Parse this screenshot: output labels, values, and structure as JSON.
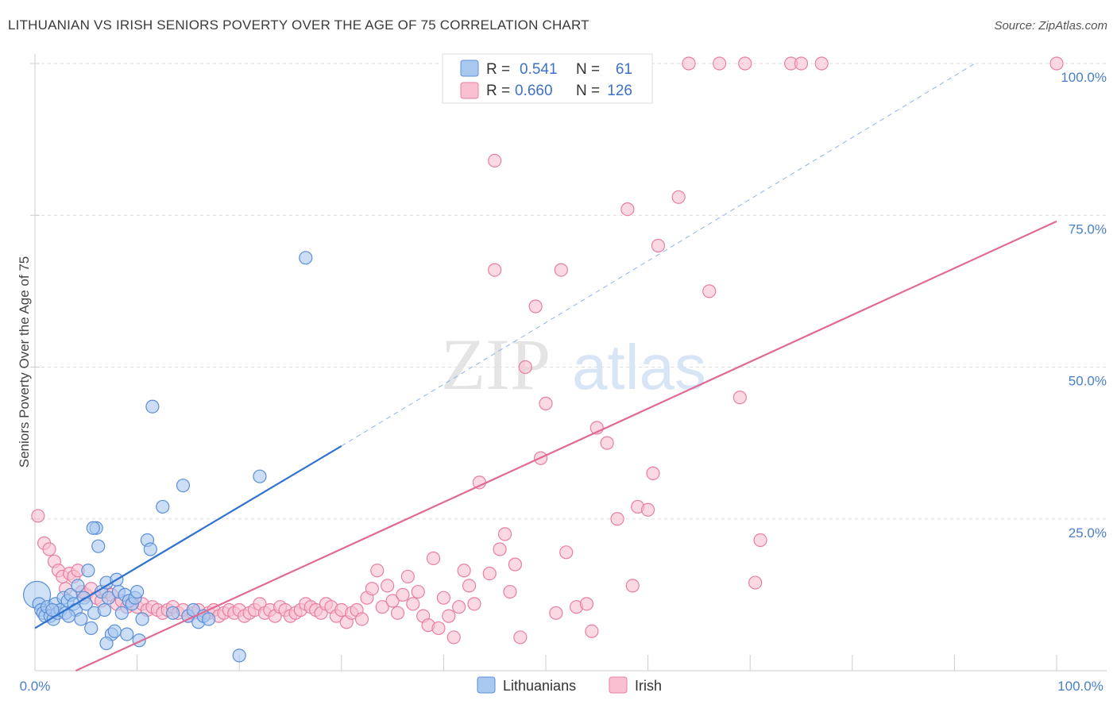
{
  "header": {
    "title": "LITHUANIAN VS IRISH SENIORS POVERTY OVER THE AGE OF 75 CORRELATION CHART",
    "source": "Source: ZipAtlas.com"
  },
  "watermark": {
    "zip": "ZIP",
    "atlas": "atlas"
  },
  "colors": {
    "lithuanians_fill": "#a8c8f0",
    "lithuanians_stroke": "#5b8fd6",
    "lithuanians_line": "#2f73cf",
    "irish_fill": "#f8c0d0",
    "irish_stroke": "#e87fa0",
    "irish_line": "#e06a94",
    "tick_label": "#4a7fc8"
  },
  "legend": {
    "rows": [
      {
        "r_label": "R =",
        "r_value": "0.541",
        "n_label": "N =",
        "n_value": "61"
      },
      {
        "r_label": "R =",
        "r_value": "0.660",
        "n_label": "N =",
        "n_value": "126"
      }
    ]
  },
  "chart_data": {
    "type": "scatter",
    "title": "LITHUANIAN VS IRISH SENIORS POVERTY OVER THE AGE OF 75 CORRELATION CHART",
    "xlabel": "",
    "ylabel": "Seniors Poverty Over the Age of 75",
    "xlim": [
      0,
      100
    ],
    "ylim": [
      0,
      100
    ],
    "x_tick_labels": [
      "0.0%",
      "100.0%"
    ],
    "y_tick_labels": [
      "25.0%",
      "50.0%",
      "75.0%",
      "100.0%"
    ],
    "y_ticks": [
      25,
      50,
      75,
      100
    ],
    "legend_position": "top-center",
    "series": [
      {
        "name": "Lithuanians",
        "r": 0.541,
        "n": 61,
        "trend": {
          "x0": 0,
          "y0": 7,
          "x1": 30,
          "y1": 37,
          "dash_x1": 92,
          "dash_y1": 100
        },
        "points": [
          [
            0.2,
            12.5
          ],
          [
            0.4,
            11.0
          ],
          [
            0.6,
            10.0
          ],
          [
            0.8,
            9.5
          ],
          [
            1.0,
            9.0
          ],
          [
            1.2,
            10.5
          ],
          [
            1.5,
            9.0
          ],
          [
            1.8,
            8.5
          ],
          [
            2.0,
            11.0
          ],
          [
            2.2,
            9.5
          ],
          [
            2.5,
            10.0
          ],
          [
            2.8,
            12.0
          ],
          [
            3.0,
            9.5
          ],
          [
            3.2,
            11.5
          ],
          [
            3.5,
            12.5
          ],
          [
            3.8,
            11.0
          ],
          [
            4.0,
            10.0
          ],
          [
            4.2,
            14.0
          ],
          [
            4.5,
            8.5
          ],
          [
            4.8,
            12.0
          ],
          [
            5.0,
            11.0
          ],
          [
            5.2,
            16.5
          ],
          [
            5.5,
            7.0
          ],
          [
            5.8,
            9.5
          ],
          [
            6.0,
            23.5
          ],
          [
            6.2,
            20.5
          ],
          [
            6.5,
            13.0
          ],
          [
            6.8,
            10.0
          ],
          [
            7.0,
            14.5
          ],
          [
            7.2,
            12.0
          ],
          [
            7.5,
            6.0
          ],
          [
            7.8,
            6.5
          ],
          [
            8.0,
            15.0
          ],
          [
            8.2,
            13.0
          ],
          [
            8.5,
            9.5
          ],
          [
            8.8,
            12.5
          ],
          [
            9.0,
            6.0
          ],
          [
            9.2,
            11.5
          ],
          [
            9.5,
            11.0
          ],
          [
            9.8,
            12.0
          ],
          [
            10.0,
            13.0
          ],
          [
            10.2,
            5.0
          ],
          [
            10.5,
            8.5
          ],
          [
            11.0,
            21.5
          ],
          [
            11.3,
            20.0
          ],
          [
            11.5,
            43.5
          ],
          [
            12.5,
            27.0
          ],
          [
            13.5,
            9.5
          ],
          [
            14.5,
            30.5
          ],
          [
            15.0,
            9.0
          ],
          [
            15.5,
            10.0
          ],
          [
            16.0,
            8.0
          ],
          [
            16.5,
            9.0
          ],
          [
            17.0,
            8.5
          ],
          [
            20.0,
            2.5
          ],
          [
            22.0,
            32.0
          ],
          [
            26.5,
            68.0
          ],
          [
            5.7,
            23.5
          ],
          [
            3.3,
            9.0
          ],
          [
            1.7,
            10.0
          ],
          [
            7.0,
            4.5
          ]
        ]
      },
      {
        "name": "Irish",
        "r": 0.66,
        "n": 126,
        "trend": {
          "x0": 4,
          "y0": 0,
          "x1": 100,
          "y1": 74
        },
        "points": [
          [
            0.3,
            25.5
          ],
          [
            0.9,
            21.0
          ],
          [
            1.4,
            20.0
          ],
          [
            1.9,
            18.0
          ],
          [
            2.3,
            16.5
          ],
          [
            2.7,
            15.5
          ],
          [
            3.0,
            13.5
          ],
          [
            3.4,
            16.0
          ],
          [
            3.8,
            15.5
          ],
          [
            4.2,
            16.5
          ],
          [
            4.6,
            13.0
          ],
          [
            5.0,
            12.5
          ],
          [
            5.5,
            13.5
          ],
          [
            6.0,
            12.0
          ],
          [
            6.5,
            11.5
          ],
          [
            7.0,
            13.0
          ],
          [
            7.5,
            12.5
          ],
          [
            8.0,
            11.0
          ],
          [
            8.5,
            11.5
          ],
          [
            9.0,
            10.5
          ],
          [
            9.5,
            11.0
          ],
          [
            10.0,
            10.5
          ],
          [
            10.5,
            11.0
          ],
          [
            11.0,
            10.0
          ],
          [
            11.5,
            10.5
          ],
          [
            12.0,
            10.0
          ],
          [
            12.5,
            9.5
          ],
          [
            13.0,
            10.0
          ],
          [
            13.5,
            10.5
          ],
          [
            14.0,
            9.5
          ],
          [
            14.5,
            10.0
          ],
          [
            15.0,
            9.0
          ],
          [
            15.5,
            9.5
          ],
          [
            16.0,
            10.0
          ],
          [
            16.5,
            9.0
          ],
          [
            17.0,
            9.5
          ],
          [
            17.5,
            10.0
          ],
          [
            18.0,
            9.0
          ],
          [
            18.5,
            9.5
          ],
          [
            19.0,
            10.0
          ],
          [
            19.5,
            9.5
          ],
          [
            20.0,
            10.0
          ],
          [
            20.5,
            9.0
          ],
          [
            21.0,
            9.5
          ],
          [
            21.5,
            10.0
          ],
          [
            22.0,
            11.0
          ],
          [
            22.5,
            9.5
          ],
          [
            23.0,
            10.0
          ],
          [
            23.5,
            9.0
          ],
          [
            24.0,
            10.5
          ],
          [
            24.5,
            10.0
          ],
          [
            25.0,
            9.0
          ],
          [
            25.5,
            9.5
          ],
          [
            26.0,
            10.0
          ],
          [
            26.5,
            11.0
          ],
          [
            27.0,
            10.5
          ],
          [
            27.5,
            10.0
          ],
          [
            28.0,
            9.5
          ],
          [
            28.5,
            11.0
          ],
          [
            29.0,
            10.5
          ],
          [
            29.5,
            9.0
          ],
          [
            30.0,
            10.0
          ],
          [
            30.5,
            8.0
          ],
          [
            31.0,
            9.5
          ],
          [
            31.5,
            10.0
          ],
          [
            32.0,
            8.5
          ],
          [
            32.5,
            12.0
          ],
          [
            33.0,
            13.5
          ],
          [
            33.5,
            16.5
          ],
          [
            34.0,
            10.5
          ],
          [
            34.5,
            14.0
          ],
          [
            35.0,
            11.5
          ],
          [
            35.5,
            9.5
          ],
          [
            36.0,
            12.5
          ],
          [
            36.5,
            15.5
          ],
          [
            37.0,
            11.0
          ],
          [
            37.5,
            13.0
          ],
          [
            38.0,
            9.0
          ],
          [
            38.5,
            7.5
          ],
          [
            39.0,
            18.5
          ],
          [
            39.5,
            7.0
          ],
          [
            40.0,
            12.0
          ],
          [
            40.5,
            9.0
          ],
          [
            41.0,
            5.5
          ],
          [
            41.5,
            10.5
          ],
          [
            42.0,
            16.5
          ],
          [
            42.5,
            14.0
          ],
          [
            43.0,
            11.0
          ],
          [
            43.5,
            31.0
          ],
          [
            44.5,
            16.0
          ],
          [
            45.0,
            66.0
          ],
          [
            45.5,
            20.0
          ],
          [
            46.0,
            22.5
          ],
          [
            46.5,
            13.0
          ],
          [
            47.0,
            17.5
          ],
          [
            47.5,
            5.5
          ],
          [
            48.0,
            50.0
          ],
          [
            49.0,
            60.0
          ],
          [
            49.5,
            35.0
          ],
          [
            50.0,
            44.0
          ],
          [
            51.0,
            9.5
          ],
          [
            51.5,
            66.0
          ],
          [
            52.0,
            19.5
          ],
          [
            53.0,
            10.5
          ],
          [
            54.0,
            11.0
          ],
          [
            54.5,
            6.5
          ],
          [
            55.0,
            40.0
          ],
          [
            56.0,
            37.5
          ],
          [
            57.0,
            25.0
          ],
          [
            58.0,
            76.0
          ],
          [
            58.5,
            14.0
          ],
          [
            59.0,
            27.0
          ],
          [
            60.0,
            26.5
          ],
          [
            60.5,
            32.5
          ],
          [
            61.0,
            70.0
          ],
          [
            63.0,
            78.0
          ],
          [
            64.0,
            100.0
          ],
          [
            66.0,
            62.5
          ],
          [
            67.0,
            100.0
          ],
          [
            69.0,
            45.0
          ],
          [
            69.5,
            100.0
          ],
          [
            70.5,
            14.5
          ],
          [
            71.0,
            21.5
          ],
          [
            74.0,
            100.0
          ],
          [
            75.0,
            100.0
          ],
          [
            77.0,
            100.0
          ],
          [
            100.0,
            100.0
          ],
          [
            45.0,
            84.0
          ]
        ]
      }
    ]
  },
  "bottom_legend": {
    "items": [
      {
        "label": "Lithuanians"
      },
      {
        "label": "Irish"
      }
    ]
  }
}
